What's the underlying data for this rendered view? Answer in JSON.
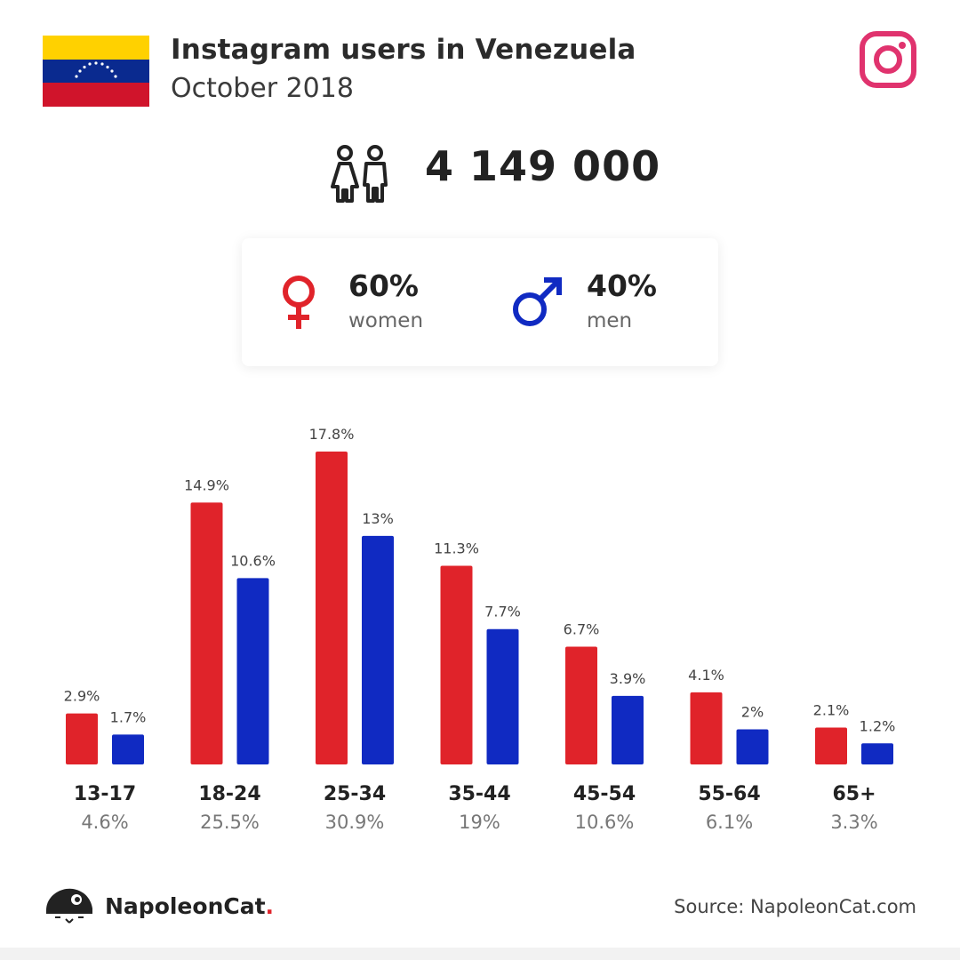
{
  "header": {
    "title": "Instagram users in Venezuela",
    "subtitle": "October 2018"
  },
  "icons": {
    "flag": "venezuela-flag-icon",
    "platform": "instagram-icon",
    "people": "people-icon",
    "female": "female-symbol-icon",
    "male": "male-symbol-icon",
    "brand": "napoleoncat-logo-icon"
  },
  "total": {
    "value": "4 149 000"
  },
  "gender": {
    "women": {
      "percent": "60%",
      "label": "women"
    },
    "men": {
      "percent": "40%",
      "label": "men"
    }
  },
  "colors": {
    "women": "#e0232a",
    "men": "#102ac2",
    "instagram": "#e0336e"
  },
  "chart_data": {
    "type": "bar",
    "categories": [
      "13-17",
      "18-24",
      "25-34",
      "35-44",
      "45-54",
      "55-64",
      "65+"
    ],
    "category_totals": [
      "4.6%",
      "25.5%",
      "30.9%",
      "19%",
      "10.6%",
      "6.1%",
      "3.3%"
    ],
    "series": [
      {
        "values": [
          2.9,
          14.9,
          17.8,
          11.3,
          6.7,
          4.1,
          2.1
        ],
        "labels": [
          "2.9%",
          "14.9%",
          "17.8%",
          "11.3%",
          "6.7%",
          "4.1%",
          "2.1%"
        ],
        "color": "#e0232a"
      },
      {
        "values": [
          1.7,
          10.6,
          13,
          7.7,
          3.9,
          2,
          1.2
        ],
        "labels": [
          "1.7%",
          "10.6%",
          "13%",
          "7.7%",
          "3.9%",
          "2%",
          "1.2%"
        ],
        "color": "#102ac2"
      }
    ],
    "ylim": [
      0,
      17.8
    ],
    "grid": false,
    "legend": "none"
  },
  "footer": {
    "brand_name": "NapoleonCat",
    "brand_dot": ".",
    "source": "Source: NapoleonCat.com"
  }
}
